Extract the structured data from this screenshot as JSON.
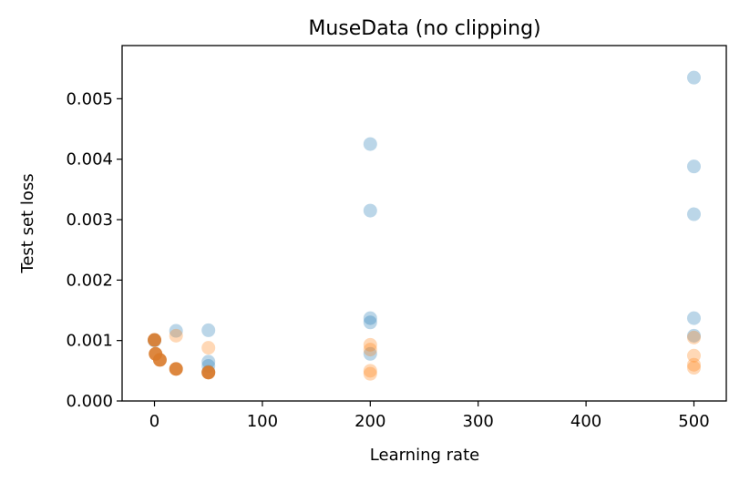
{
  "chart_data": {
    "type": "scatter",
    "title": "MuseData (no clipping)",
    "xlabel": "Learning rate",
    "ylabel": "Test set loss",
    "xlim": [
      -30,
      530
    ],
    "ylim": [
      0.0,
      0.00588
    ],
    "xticks": [
      0,
      100,
      200,
      300,
      400,
      500
    ],
    "xtick_labels": [
      "0",
      "100",
      "200",
      "300",
      "400",
      "500"
    ],
    "yticks": [
      0.0,
      0.001,
      0.002,
      0.003,
      0.004,
      0.005
    ],
    "ytick_labels": [
      "0.000",
      "0.001",
      "0.002",
      "0.003",
      "0.004",
      "0.005"
    ],
    "grid": false,
    "series": [
      {
        "color": "#1f77b4",
        "alpha": 0.3,
        "points": [
          {
            "x": 0,
            "y": 0.001
          },
          {
            "x": 20,
            "y": 0.00116
          },
          {
            "x": 50,
            "y": 0.00117
          },
          {
            "x": 50,
            "y": 0.00065
          },
          {
            "x": 50,
            "y": 0.00058
          },
          {
            "x": 50,
            "y": 0.00048
          },
          {
            "x": 200,
            "y": 0.00425
          },
          {
            "x": 200,
            "y": 0.00315
          },
          {
            "x": 200,
            "y": 0.00137
          },
          {
            "x": 200,
            "y": 0.0013
          },
          {
            "x": 200,
            "y": 0.00078
          },
          {
            "x": 500,
            "y": 0.00535
          },
          {
            "x": 500,
            "y": 0.00388
          },
          {
            "x": 500,
            "y": 0.00309
          },
          {
            "x": 500,
            "y": 0.00137
          },
          {
            "x": 500,
            "y": 0.00108
          }
        ]
      },
      {
        "color": "#ff7f0e",
        "alpha": 0.3,
        "points": [
          {
            "x": 20,
            "y": 0.00108
          },
          {
            "x": 50,
            "y": 0.00088
          },
          {
            "x": 50,
            "y": 0.00048
          },
          {
            "x": 200,
            "y": 0.00093
          },
          {
            "x": 200,
            "y": 0.00085
          },
          {
            "x": 200,
            "y": 0.0005
          },
          {
            "x": 200,
            "y": 0.00045
          },
          {
            "x": 500,
            "y": 0.00105
          },
          {
            "x": 500,
            "y": 0.00075
          },
          {
            "x": 500,
            "y": 0.0006
          },
          {
            "x": 500,
            "y": 0.00055
          }
        ]
      },
      {
        "color": "#d97a2a",
        "alpha": 0.9,
        "points": [
          {
            "x": 0,
            "y": 0.00101
          },
          {
            "x": 1,
            "y": 0.00078
          },
          {
            "x": 5,
            "y": 0.00068
          },
          {
            "x": 20,
            "y": 0.00053
          },
          {
            "x": 50,
            "y": 0.00047
          }
        ]
      }
    ]
  }
}
